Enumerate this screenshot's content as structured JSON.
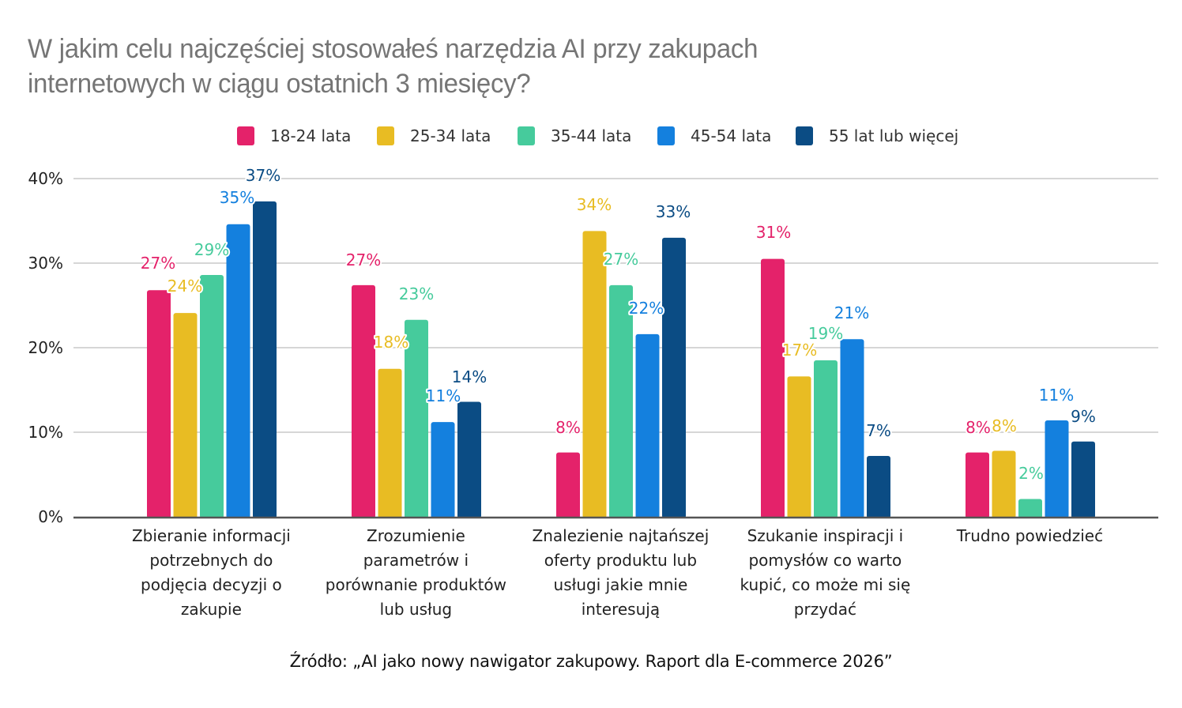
{
  "chart_data": {
    "type": "bar",
    "title": "W jakim celu najczęściej stosowałeś narzędzia AI przy zakupach internetowych w ciągu ostatnich 3 miesięcy?",
    "title_lines": [
      "W jakim celu najczęściej stosowałeś narzędzia AI przy zakupach",
      "internetowych w ciągu ostatnich 3 miesięcy?"
    ],
    "xlabel": "",
    "ylabel": "",
    "ylim": [
      0,
      40
    ],
    "yticks": [
      0,
      10,
      20,
      30,
      40
    ],
    "ytick_labels": [
      "0%",
      "10%",
      "20%",
      "30%",
      "40%"
    ],
    "grid": true,
    "legend_position": "top",
    "categories": [
      "Zbieranie informacji potrzebnych do podjęcia decyzji o zakupie",
      "Zrozumienie parametrów i porównanie produktów lub usług",
      "Znalezienie najtańszej oferty produktu lub usługi jakie mnie interesują",
      "Szukanie inspiracji i pomysłów co warto kupić, co może mi się przydać",
      "Trudno powiedzieć"
    ],
    "category_lines": [
      [
        "Zbieranie informacji",
        "potrzebnych do",
        "podjęcia decyzji o",
        "zakupie"
      ],
      [
        "Zrozumienie",
        "parametrów i",
        "porównanie produktów",
        "lub usług"
      ],
      [
        "Znalezienie najtańszej",
        "oferty produktu lub",
        "usługi jakie mnie",
        "interesują"
      ],
      [
        "Szukanie inspiracji i",
        "pomysłów co warto",
        "kupić, co może mi się",
        "przydać"
      ],
      [
        "Trudno powiedzieć"
      ]
    ],
    "series": [
      {
        "name": "18-24 lata",
        "color": "#E4226A",
        "values": [
          27,
          27,
          8,
          31,
          8
        ],
        "labels": [
          "27%",
          "27%",
          "8%",
          "31%",
          "8%"
        ]
      },
      {
        "name": "25-34 lata",
        "color": "#E8BC23",
        "values": [
          24,
          18,
          34,
          17,
          8
        ],
        "labels": [
          "24%",
          "18%",
          "34%",
          "17%",
          "8%"
        ]
      },
      {
        "name": "35-44 lata",
        "color": "#46CB9C",
        "values": [
          29,
          23,
          27,
          19,
          2
        ],
        "labels": [
          "29%",
          "23%",
          "27%",
          "19%",
          "2%"
        ]
      },
      {
        "name": "45-54 lata",
        "color": "#1480DE",
        "values": [
          35,
          11,
          22,
          21,
          11
        ],
        "labels": [
          "35%",
          "11%",
          "22%",
          "21%",
          "11%"
        ]
      },
      {
        "name": "55 lat lub więcej",
        "color": "#0B4C84",
        "values": [
          37,
          14,
          33,
          7,
          9
        ],
        "labels": [
          "37%",
          "14%",
          "33%",
          "7%",
          "9%"
        ]
      }
    ],
    "bar_heights_precise": [
      [
        26.8,
        27.4,
        7.6,
        30.5,
        7.6
      ],
      [
        24.1,
        17.5,
        33.8,
        16.6,
        7.8
      ],
      [
        28.6,
        23.3,
        27.4,
        18.5,
        2.1
      ],
      [
        34.6,
        11.2,
        21.6,
        21.0,
        11.4
      ],
      [
        37.3,
        13.6,
        33.0,
        7.2,
        8.9
      ]
    ]
  },
  "source": "Źródło: „AI jako nowy nawigator zakupowy. Raport dla E-commerce 2026”"
}
